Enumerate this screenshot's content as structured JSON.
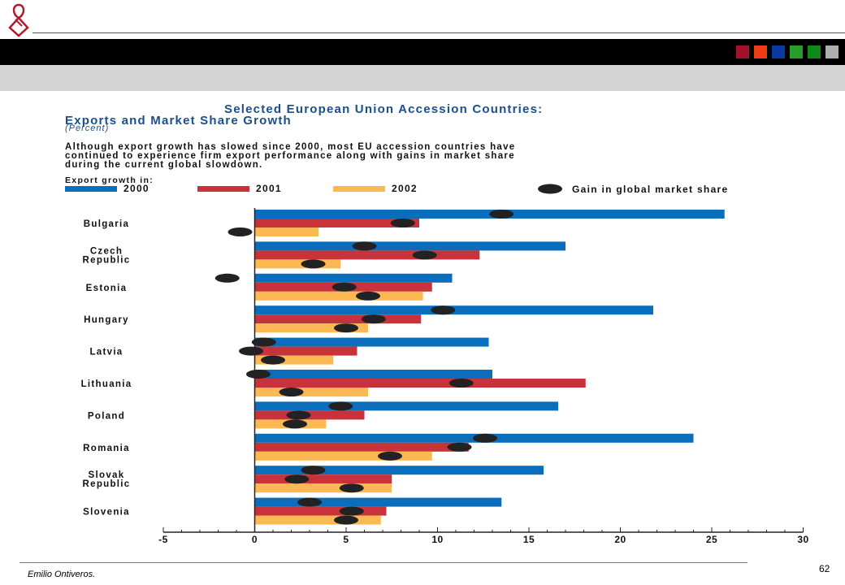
{
  "header": {
    "logo_icon": "ribbon-diamond-logo-icon",
    "logo_color": "#b01c2e",
    "squares": [
      "#a5102c",
      "#f03c14",
      "#0a3aa0",
      "#2a9a2a",
      "#0e8a14",
      "#b0b0b0"
    ]
  },
  "title_line1": "Selected European Union Accession Countries:",
  "title_line2": "Exports and Market Share Growth",
  "subtitle": "(Percent)",
  "description": [
    "Although export growth has slowed since 2000, most EU accession countries have",
    "continued to experience firm export performance along with gains in market share",
    "during the current global slowdown."
  ],
  "export_growth_label": "Export growth in:",
  "chart_data": {
    "type": "bar",
    "orientation": "horizontal",
    "categories": [
      {
        "lines": [
          "Bulgaria"
        ]
      },
      {
        "lines": [
          "Czech",
          "Republic"
        ]
      },
      {
        "lines": [
          "Estonia"
        ]
      },
      {
        "lines": [
          "Hungary"
        ]
      },
      {
        "lines": [
          "Latvia"
        ]
      },
      {
        "lines": [
          "Lithuania"
        ]
      },
      {
        "lines": [
          "Poland"
        ]
      },
      {
        "lines": [
          "Romania"
        ]
      },
      {
        "lines": [
          "Slovak",
          "Republic"
        ]
      },
      {
        "lines": [
          "Slovenia"
        ]
      }
    ],
    "series": [
      {
        "name": "2000",
        "color": "#0a6ebd",
        "values": [
          25.7,
          17.0,
          10.8,
          21.8,
          12.8,
          13.0,
          16.6,
          24.0,
          15.8,
          13.5
        ]
      },
      {
        "name": "2001",
        "color": "#c8323a",
        "values": [
          9.0,
          12.3,
          9.7,
          9.1,
          5.6,
          18.1,
          6.0,
          11.7,
          7.5,
          7.2
        ]
      },
      {
        "name": "2002",
        "color": "#fbb954",
        "values": [
          3.5,
          4.7,
          9.2,
          6.2,
          4.3,
          6.2,
          3.9,
          9.7,
          7.5,
          6.9
        ]
      }
    ],
    "market_share": {
      "name": "Gain in global market share",
      "color": "#222222",
      "points": [
        [
          13.5,
          8.1,
          -0.8
        ],
        [
          6.0,
          9.3,
          3.2
        ],
        [
          -1.5,
          4.9,
          6.2
        ],
        [
          10.3,
          6.5,
          5.0
        ],
        [
          0.5,
          -0.2,
          1.0
        ],
        [
          0.2,
          11.3,
          2.0
        ],
        [
          4.7,
          2.4,
          2.2
        ],
        [
          12.6,
          11.2,
          7.4
        ],
        [
          3.2,
          2.3,
          5.3
        ],
        [
          3.0,
          5.3,
          5.0
        ]
      ]
    },
    "xlim": [
      -5,
      30
    ],
    "xticks": [
      -5,
      0,
      5,
      10,
      15,
      20,
      25,
      30
    ],
    "xlabel": "",
    "ylabel": "",
    "legend_position": "top"
  },
  "footer": {
    "author": "Emilio Ontiveros.",
    "page": "62"
  }
}
